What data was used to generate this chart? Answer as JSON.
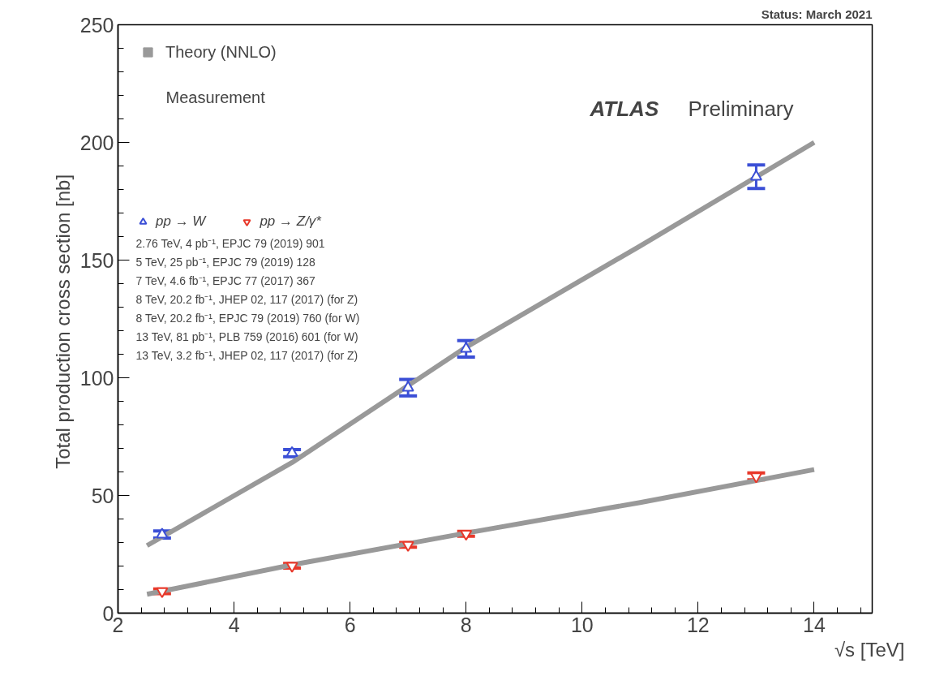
{
  "chart_data": {
    "type": "scatter",
    "xlabel": "√s  [TeV]",
    "ylabel": "Total production cross section  [nb]",
    "xlim": [
      2,
      15
    ],
    "ylim": [
      0,
      250
    ],
    "xticks": [
      2,
      4,
      6,
      8,
      10,
      12,
      14
    ],
    "yticks": [
      0,
      50,
      100,
      150,
      200,
      250
    ],
    "grid": false,
    "legend": "top left",
    "series": [
      {
        "name": "Theory (NNLO)",
        "type": "line",
        "color": "#999999",
        "x": [
          2.5,
          5,
          8,
          11,
          14
        ],
        "values": [
          28.7,
          64,
          113,
          156,
          200
        ]
      },
      {
        "type": "line",
        "color": "#999999",
        "x": [
          2.5,
          5,
          8,
          11,
          14
        ],
        "values": [
          8,
          20.5,
          34,
          47,
          61
        ]
      },
      {
        "name": "pp → W",
        "type": "scatter",
        "marker": "triangle",
        "color": "#3b4fd6",
        "x": [
          2.76,
          5,
          7,
          8,
          13
        ],
        "values": [
          33.4,
          68,
          95.8,
          112.3,
          185.4
        ],
        "errors": [
          1.5,
          1.5,
          3.5,
          3.5,
          5
        ]
      },
      {
        "name": "pp → Z/γ*",
        "type": "scatter",
        "marker": "triangle",
        "color": "#e8382a",
        "x": [
          2.76,
          5,
          7,
          8,
          13
        ],
        "values": [
          9.3,
          20.1,
          29,
          33.7,
          58.1
        ],
        "errors": [
          1,
          1,
          1,
          1,
          1.5
        ]
      }
    ],
    "annotations": [
      "Status: March 2021",
      "ATLAS",
      "Preliminary",
      "Measurement",
      "2.76 TeV, 4 pb⁻¹, EPJC 79 (2019) 901",
      "5 TeV, 25 pb⁻¹, EPJC 79 (2019) 128",
      "7 TeV, 4.6 fb⁻¹, EPJC 77 (2017) 367",
      "8 TeV, 20.2 fb⁻¹, JHEP 02, 117 (2017) (for Z)",
      "8 TeV, 20.2 fb⁻¹, EPJC 79 (2019) 760 (for W)",
      "13 TeV, 81 pb⁻¹, PLB 759 (2016) 601 (for W)",
      "13 TeV, 3.2 fb⁻¹, JHEP 02, 117 (2017) (for Z)"
    ]
  }
}
